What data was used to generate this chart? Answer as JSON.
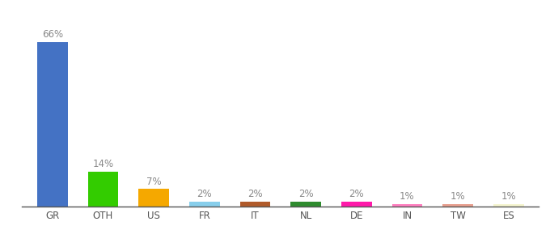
{
  "categories": [
    "GR",
    "OTH",
    "US",
    "FR",
    "IT",
    "NL",
    "DE",
    "IN",
    "TW",
    "ES"
  ],
  "values": [
    66,
    14,
    7,
    2,
    2,
    2,
    2,
    1,
    1,
    1
  ],
  "labels": [
    "66%",
    "14%",
    "7%",
    "2%",
    "2%",
    "2%",
    "2%",
    "1%",
    "1%",
    "1%"
  ],
  "bar_colors": [
    "#4472c4",
    "#33cc00",
    "#f5a800",
    "#87ceeb",
    "#b05a2a",
    "#2e8b2e",
    "#ff1aaa",
    "#ff80c0",
    "#e8a090",
    "#f5f5d0"
  ],
  "background_color": "#ffffff",
  "ylim": [
    0,
    75
  ],
  "xlabel_fontsize": 8.5,
  "label_fontsize": 8.5,
  "label_color": "#888888",
  "bar_width": 0.6
}
